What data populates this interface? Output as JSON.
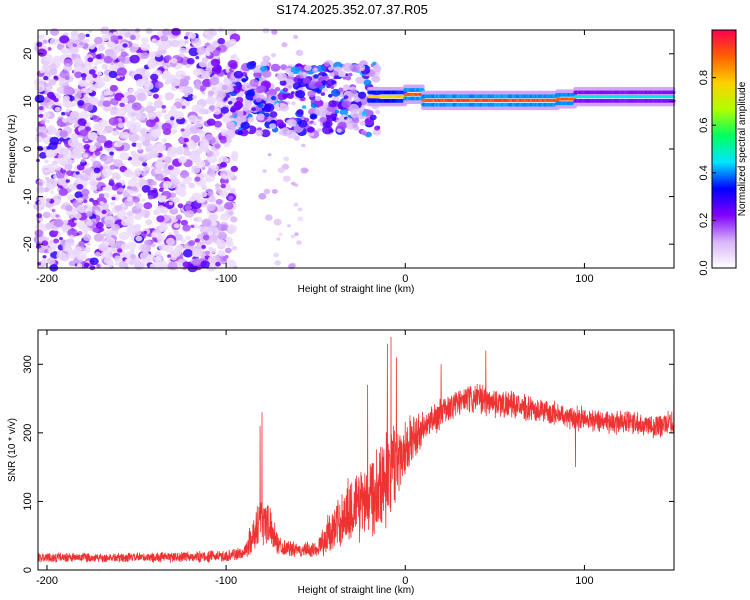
{
  "title": "S174.2025.352.07.37.R05",
  "colorbar": {
    "label": "Normalized spectral amplitude",
    "range": [
      0.0,
      1.0
    ],
    "ticks": [
      0.0,
      0.2,
      0.4,
      0.6,
      0.8
    ],
    "tick_labels": [
      "0.0",
      "0.2",
      "0.4",
      "0.6",
      "0.8"
    ],
    "colors": [
      "#ffffff",
      "#d8b4f8",
      "#8000ff",
      "#0000ff",
      "#00e5ff",
      "#00ff60",
      "#b0ff00",
      "#ffd000",
      "#ff6000",
      "#ff0050"
    ]
  },
  "chart_data": [
    {
      "type": "heatmap",
      "name": "spectrogram",
      "xlabel": "Height of straight line (km)",
      "ylabel": "Frequency (Hz)",
      "xlim": [
        -205,
        150
      ],
      "ylim": [
        -25,
        25
      ],
      "xticks": [
        -200,
        -100,
        0,
        100
      ],
      "xtick_labels": [
        "-200",
        "-100",
        "0",
        "100"
      ],
      "yticks": [
        -20,
        -10,
        0,
        10,
        20
      ],
      "ytick_labels": [
        "-20",
        "-10",
        "0",
        "10",
        "20"
      ],
      "features": {
        "noise_region_x": [
          -205,
          -95
        ],
        "noise_tail_x": [
          -80,
          -55
        ],
        "scatter_region_x": [
          -98,
          -15
        ],
        "scatter_freq_range": [
          3,
          18
        ],
        "tone_segments": [
          {
            "x": [
              -20,
              0
            ],
            "freq": 11,
            "peak": 0.8
          },
          {
            "x": [
              0,
              10
            ],
            "freq": 11.5,
            "peak": 0.95
          },
          {
            "x": [
              10,
              85
            ],
            "freq": 10.2,
            "peak": 0.95
          },
          {
            "x": [
              85,
              95
            ],
            "freq": 10.5,
            "peak": 0.95
          },
          {
            "x": [
              95,
              150
            ],
            "freq": 11,
            "peak": 0.5
          }
        ]
      }
    },
    {
      "type": "line",
      "name": "snr",
      "xlabel": "Height of straight line (km)",
      "ylabel": "SNR (10 * v/v)",
      "xlim": [
        -205,
        150
      ],
      "ylim": [
        0,
        350
      ],
      "xticks": [
        -200,
        -100,
        0,
        100
      ],
      "xtick_labels": [
        "-200",
        "-100",
        "0",
        "100"
      ],
      "yticks": [
        0,
        100,
        200,
        300
      ],
      "ytick_labels": [
        "0",
        "100",
        "200",
        "300"
      ],
      "color": "#ee3333",
      "envelope": {
        "x": [
          -205,
          -150,
          -100,
          -90,
          -85,
          -80,
          -75,
          -70,
          -60,
          -50,
          -40,
          -30,
          -20,
          -10,
          0,
          10,
          20,
          30,
          40,
          50,
          60,
          70,
          80,
          90,
          100,
          110,
          120,
          130,
          140,
          150
        ],
        "mean": [
          18,
          18,
          20,
          25,
          50,
          80,
          60,
          35,
          28,
          30,
          60,
          90,
          110,
          140,
          180,
          205,
          230,
          245,
          250,
          245,
          240,
          235,
          230,
          225,
          220,
          218,
          215,
          215,
          210,
          215
        ],
        "spread": [
          8,
          8,
          10,
          12,
          30,
          50,
          30,
          15,
          12,
          14,
          40,
          60,
          70,
          80,
          50,
          30,
          25,
          25,
          25,
          25,
          22,
          20,
          20,
          20,
          20,
          20,
          20,
          20,
          20,
          20
        ]
      },
      "spikes": [
        {
          "x": -81,
          "y": 210
        },
        {
          "x": -80,
          "y": 230
        },
        {
          "x": -21,
          "y": 270
        },
        {
          "x": -10,
          "y": 330
        },
        {
          "x": -8,
          "y": 340
        },
        {
          "x": -5,
          "y": 310
        },
        {
          "x": 20,
          "y": 300
        },
        {
          "x": 45,
          "y": 320
        },
        {
          "x": 95,
          "y": 150
        },
        {
          "x": 150,
          "y": 280
        }
      ]
    }
  ]
}
